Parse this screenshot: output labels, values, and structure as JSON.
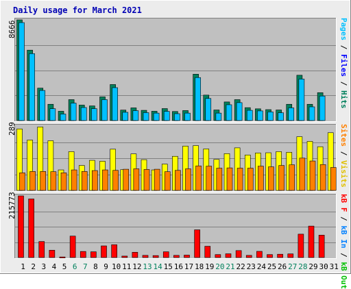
{
  "title": "Daily usage for March 2021",
  "colors": {
    "hits": "#00805c",
    "files": "#0000ff",
    "pages": "#00c0ff",
    "visits": "#ffff00",
    "sites": "#ff8000",
    "kbytes": "#ff0000",
    "kb_in": "#0080ff",
    "kb_out": "#00c000",
    "day_weekend": "#00805c",
    "day_weekday": "#000000"
  },
  "legend": {
    "top": {
      "pages": "Pages",
      "sep1": " / ",
      "files": "Files",
      "sep2": " / ",
      "hits": "Hits"
    },
    "mid": {
      "sites": "Sites",
      "sep": " / ",
      "visits": "Visits"
    },
    "bottom": {
      "kbf": "kB F",
      "sep1": " / ",
      "kbin": "kB In",
      "sep2": " / ",
      "kbout": "kB Out"
    }
  },
  "chart_data": [
    {
      "type": "bar",
      "panel": "hits-files-pages",
      "ymax_label": "8666",
      "ylim": [
        0,
        8666
      ],
      "categories": [
        "1",
        "2",
        "3",
        "4",
        "5",
        "6",
        "7",
        "8",
        "9",
        "10",
        "11",
        "12",
        "13",
        "14",
        "15",
        "16",
        "17",
        "18",
        "19",
        "20",
        "21",
        "22",
        "23",
        "24",
        "25",
        "26",
        "27",
        "28",
        "29",
        "30",
        "31"
      ],
      "series": [
        {
          "name": "Hits",
          "values": [
            8666,
            6060,
            2790,
            1400,
            800,
            1800,
            1330,
            1260,
            2040,
            3100,
            900,
            1090,
            880,
            800,
            1030,
            780,
            860,
            3990,
            2190,
            910,
            1600,
            1800,
            1110,
            1010,
            940,
            910,
            1400,
            3900,
            1400,
            2400,
            null
          ]
        },
        {
          "name": "Pages",
          "values": [
            8430,
            5760,
            2590,
            1020,
            560,
            1500,
            1120,
            1020,
            1800,
            2830,
            710,
            850,
            680,
            640,
            790,
            590,
            640,
            3700,
            1900,
            640,
            1360,
            1540,
            880,
            830,
            740,
            670,
            1090,
            3570,
            1180,
            2110,
            null
          ]
        }
      ]
    },
    {
      "type": "bar",
      "panel": "visits-sites",
      "ymax_label": "289",
      "ylim": [
        0,
        289
      ],
      "categories": [
        "1",
        "2",
        "3",
        "4",
        "5",
        "6",
        "7",
        "8",
        "9",
        "10",
        "11",
        "12",
        "13",
        "14",
        "15",
        "16",
        "17",
        "18",
        "19",
        "20",
        "21",
        "22",
        "23",
        "24",
        "25",
        "26",
        "27",
        "28",
        "29",
        "30",
        "31"
      ],
      "series": [
        {
          "name": "Visits",
          "values": [
            276,
            226,
            285,
            223,
            92,
            174,
            112,
            135,
            131,
            185,
            93,
            164,
            138,
            92,
            118,
            153,
            199,
            201,
            186,
            139,
            165,
            191,
            159,
            168,
            169,
            174,
            171,
            241,
            220,
            196,
            259
          ]
        },
        {
          "name": "Sites",
          "values": [
            79,
            85,
            85,
            84,
            79,
            92,
            85,
            89,
            92,
            90,
            95,
            97,
            94,
            95,
            84,
            90,
            97,
            110,
            109,
            100,
            101,
            100,
            100,
            109,
            106,
            112,
            115,
            145,
            132,
            116,
            103
          ]
        }
      ]
    },
    {
      "type": "bar",
      "panel": "kbytes",
      "ymax_label": "215773",
      "ylim": [
        0,
        215773
      ],
      "categories": [
        "1",
        "2",
        "3",
        "4",
        "5",
        "6",
        "7",
        "8",
        "9",
        "10",
        "11",
        "12",
        "13",
        "14",
        "15",
        "16",
        "17",
        "18",
        "19",
        "20",
        "21",
        "22",
        "23",
        "24",
        "25",
        "26",
        "27",
        "28",
        "29",
        "30",
        "31"
      ],
      "series": [
        {
          "name": "kB F",
          "values": [
            215773,
            205000,
            56000,
            25500,
            2000,
            75000,
            21200,
            20100,
            40700,
            44800,
            5000,
            18300,
            7500,
            6800,
            20100,
            7500,
            8400,
            97000,
            39400,
            10300,
            13100,
            24300,
            7500,
            21600,
            10300,
            11500,
            12700,
            81800,
            110000,
            78400,
            null
          ]
        }
      ]
    }
  ]
}
